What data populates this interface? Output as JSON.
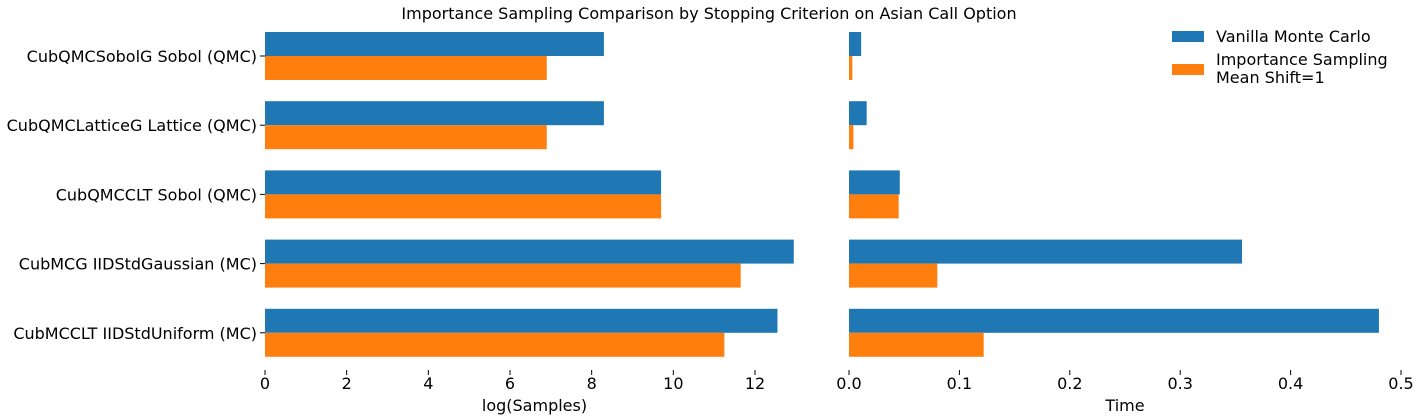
{
  "chart_data": {
    "title": "Importance Sampling Comparison by Stopping Criterion on Asian Call Option",
    "type": "bar",
    "orientation": "horizontal",
    "categories": [
      "CubQMCSobolG Sobol (QMC)",
      "CubQMCLatticeG Lattice (QMC)",
      "CubQMCCLT Sobol (QMC)",
      "CubMCG IIDStdGaussian (MC)",
      "CubMCCLT IIDStdUniform (MC)"
    ],
    "legend": {
      "position": "top-right",
      "entries": [
        {
          "label": "Vanilla Monte Carlo",
          "color": "#1f77b4"
        },
        {
          "label_lines": [
            "Importance Sampling",
            "Mean Shift=1"
          ],
          "color": "#ff7f0e"
        }
      ]
    },
    "panels": [
      {
        "xlabel": "log(Samples)",
        "xlim": [
          0,
          13.2
        ],
        "xticks": [
          0,
          2,
          4,
          6,
          8,
          10,
          12
        ],
        "series": [
          {
            "name": "Vanilla Monte Carlo",
            "color": "#1f77b4",
            "values": [
              8.3,
              8.3,
              9.7,
              12.95,
              12.55
            ]
          },
          {
            "name": "Importance Sampling Mean Shift=1",
            "color": "#ff7f0e",
            "values": [
              6.9,
              6.9,
              9.7,
              11.65,
              11.25
            ]
          }
        ]
      },
      {
        "xlabel": "Time",
        "xlim": [
          0,
          0.5
        ],
        "xticks": [
          0.0,
          0.1,
          0.2,
          0.3,
          0.4,
          0.5
        ],
        "xtick_labels": [
          "0.0",
          "0.1",
          "0.2",
          "0.3",
          "0.4",
          "0.5"
        ],
        "series": [
          {
            "name": "Vanilla Monte Carlo",
            "color": "#1f77b4",
            "values": [
              0.011,
              0.016,
              0.046,
              0.356,
              0.48
            ]
          },
          {
            "name": "Importance Sampling Mean Shift=1",
            "color": "#ff7f0e",
            "values": [
              0.003,
              0.004,
              0.045,
              0.08,
              0.122
            ]
          }
        ]
      }
    ]
  }
}
